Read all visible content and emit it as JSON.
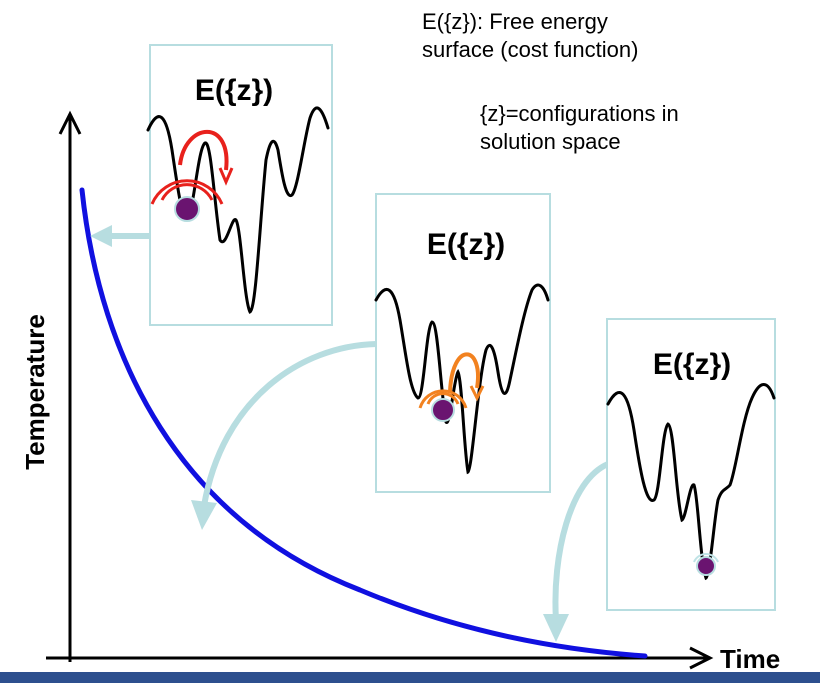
{
  "notes": {
    "energy_line1": "E({z}): Free energy",
    "energy_line2": "surface (cost function)",
    "config_line1": "{z}=configurations in",
    "config_line2": "solution space"
  },
  "axes": {
    "y_label": "Temperature",
    "x_label": "Time"
  },
  "panels": [
    {
      "title": "E({z})",
      "hop_color": "#e8211c"
    },
    {
      "title": "E({z})",
      "hop_color": "#f28220"
    },
    {
      "title": "E({z})",
      "hop_color": "#bfe3e6"
    }
  ],
  "colors": {
    "cooling_curve": "#1010e0",
    "connector": "#b7dde0",
    "panel_border": "#b7dde0",
    "particle": "#6a1470",
    "footer_bar": "#2d4f8e"
  }
}
